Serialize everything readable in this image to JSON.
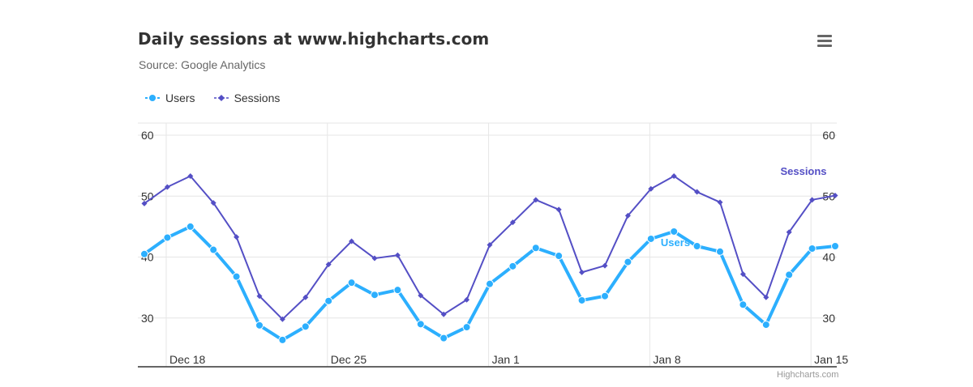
{
  "title": "Daily sessions at www.highcharts.com",
  "subtitle": "Source: Google Analytics",
  "credits": "Highcharts.com",
  "menu_icon": "hamburger-menu-icon",
  "colors": {
    "users": "#2caffe",
    "sessions": "#544fc5",
    "grid": "#e6e6e6",
    "axis": "#333333"
  },
  "chart_data": {
    "type": "line",
    "x_start": "Dec 17",
    "x": [
      "Dec 17",
      "Dec 18",
      "Dec 19",
      "Dec 20",
      "Dec 21",
      "Dec 22",
      "Dec 23",
      "Dec 24",
      "Dec 25",
      "Dec 26",
      "Dec 27",
      "Dec 28",
      "Dec 29",
      "Dec 30",
      "Dec 31",
      "Jan 1",
      "Jan 2",
      "Jan 3",
      "Jan 4",
      "Jan 5",
      "Jan 6",
      "Jan 7",
      "Jan 8",
      "Jan 9",
      "Jan 10",
      "Jan 11",
      "Jan 12",
      "Jan 13",
      "Jan 14",
      "Jan 15",
      "Jan 16"
    ],
    "xticks": [
      "Dec 18",
      "Dec 25",
      "Jan 1",
      "Jan 8",
      "Jan 15"
    ],
    "yticks": [
      30,
      40,
      50,
      60
    ],
    "ylim": [
      22,
      62
    ],
    "grid": true,
    "legend_placement": "top-left",
    "series": [
      {
        "name": "Users",
        "values": [
          40.5,
          43.2,
          45.0,
          41.2,
          36.8,
          28.8,
          26.4,
          28.6,
          32.8,
          35.8,
          33.8,
          34.6,
          29.0,
          26.7,
          28.5,
          35.6,
          38.5,
          41.5,
          40.2,
          32.9,
          33.6,
          39.2,
          43.0,
          44.2,
          41.8,
          40.9,
          32.2,
          28.9,
          37.1,
          41.4,
          41.8
        ],
        "label": "Users"
      },
      {
        "name": "Sessions",
        "values": [
          48.8,
          51.5,
          53.3,
          48.9,
          43.3,
          33.6,
          29.8,
          33.4,
          38.8,
          42.6,
          39.8,
          40.3,
          33.7,
          30.6,
          33.0,
          42.0,
          45.7,
          49.4,
          47.8,
          37.5,
          38.6,
          46.8,
          51.2,
          53.3,
          50.7,
          49.0,
          37.2,
          33.4,
          44.1,
          49.4,
          50.1
        ],
        "label": "Sessions"
      }
    ]
  }
}
